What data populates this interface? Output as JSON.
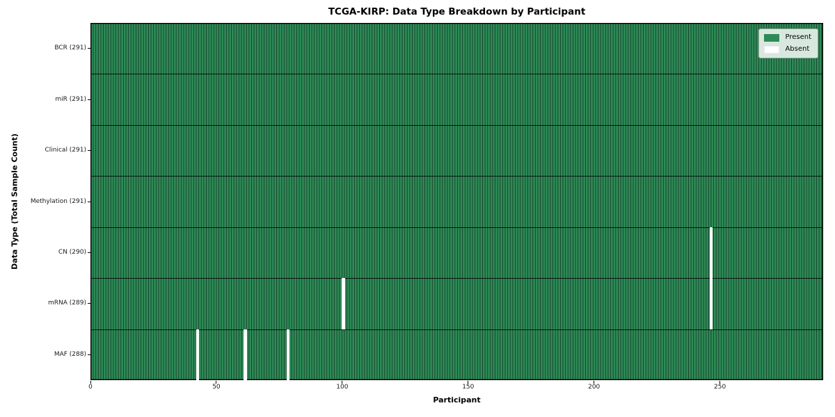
{
  "chart_data": {
    "type": "heatmap",
    "title": "TCGA-KIRP: Data Type Breakdown by Participant",
    "xlabel": "Participant",
    "ylabel": "Data Type (Total Sample Count)",
    "n_participants": 291,
    "xlim": [
      0,
      291
    ],
    "x_ticks": [
      0,
      50,
      100,
      150,
      200,
      250
    ],
    "grid": false,
    "legend_position": "upper right",
    "rows": [
      {
        "label": "BCR (291)",
        "data_type": "BCR",
        "total": 291,
        "absent_participants": []
      },
      {
        "label": "miR (291)",
        "data_type": "miR",
        "total": 291,
        "absent_participants": []
      },
      {
        "label": "Clinical (291)",
        "data_type": "Clinical",
        "total": 291,
        "absent_participants": []
      },
      {
        "label": "Methylation (291)",
        "data_type": "Methylation",
        "total": 291,
        "absent_participants": []
      },
      {
        "label": "CN (290)",
        "data_type": "CN",
        "total": 290,
        "absent_participants": [
          246
        ]
      },
      {
        "label": "mRNA (289)",
        "data_type": "mRNA",
        "total": 289,
        "absent_participants": [
          100,
          246
        ]
      },
      {
        "label": "MAF (288)",
        "data_type": "MAF",
        "total": 288,
        "absent_participants": [
          42,
          61,
          78
        ]
      }
    ],
    "legend": [
      {
        "label": "Present",
        "color": "#2e8b57"
      },
      {
        "label": "Absent",
        "color": "#ffffff"
      }
    ],
    "colors": {
      "present": "#2e8b57",
      "absent": "#ffffff",
      "cell_edge": "#16402a",
      "row_divider": "#05160d",
      "axis": "#000000"
    }
  }
}
